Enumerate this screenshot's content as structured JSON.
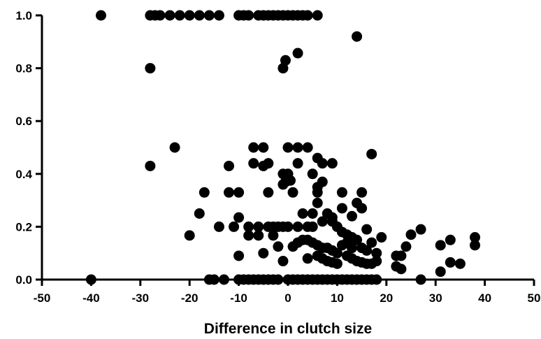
{
  "chart_data": {
    "type": "scatter",
    "title": "",
    "xlabel": "Difference in clutch size",
    "ylabel": "",
    "xlim": [
      -50,
      50
    ],
    "ylim": [
      0,
      1.0
    ],
    "xticks": [
      -50,
      -40,
      -30,
      -20,
      -10,
      0,
      10,
      20,
      30,
      40,
      50
    ],
    "yticks": [
      0.0,
      0.2,
      0.4,
      0.6,
      0.8,
      1.0
    ],
    "xtick_labels": [
      "-50",
      "-40",
      "-30",
      "-20",
      "-10",
      "0",
      "10",
      "20",
      "30",
      "40",
      "50"
    ],
    "ytick_labels": [
      "0.0",
      "0.2",
      "0.4",
      "0.6",
      "0.8",
      "1.0"
    ],
    "grid": false,
    "legend": "none",
    "marker_color": "#000000",
    "points": [
      [
        -38,
        1.0
      ],
      [
        -28,
        1.0
      ],
      [
        -27,
        1.0
      ],
      [
        -26,
        1.0
      ],
      [
        -24,
        1.0
      ],
      [
        -22,
        1.0
      ],
      [
        -20,
        1.0
      ],
      [
        -18,
        1.0
      ],
      [
        -16,
        1.0
      ],
      [
        -14,
        1.0
      ],
      [
        -10,
        1.0
      ],
      [
        -9,
        1.0
      ],
      [
        -8,
        1.0
      ],
      [
        -6,
        1.0
      ],
      [
        -5,
        1.0
      ],
      [
        -4,
        1.0
      ],
      [
        -3,
        1.0
      ],
      [
        -2,
        1.0
      ],
      [
        -1,
        1.0
      ],
      [
        0,
        1.0
      ],
      [
        1,
        1.0
      ],
      [
        2,
        1.0
      ],
      [
        3,
        1.0
      ],
      [
        4,
        1.0
      ],
      [
        6,
        1.0
      ],
      [
        -28,
        0.8
      ],
      [
        -1,
        0.8
      ],
      [
        -0.5,
        0.83
      ],
      [
        2,
        0.857
      ],
      [
        14,
        0.92
      ],
      [
        -23,
        0.5
      ],
      [
        -7,
        0.5
      ],
      [
        -5,
        0.5
      ],
      [
        0,
        0.5
      ],
      [
        2,
        0.5
      ],
      [
        4,
        0.5
      ],
      [
        -28,
        0.43
      ],
      [
        -12,
        0.43
      ],
      [
        -7,
        0.44
      ],
      [
        -5,
        0.43
      ],
      [
        -4,
        0.44
      ],
      [
        -1,
        0.4
      ],
      [
        0,
        0.4
      ],
      [
        2,
        0.44
      ],
      [
        5,
        0.4
      ],
      [
        6,
        0.46
      ],
      [
        7,
        0.44
      ],
      [
        9,
        0.44
      ],
      [
        17,
        0.475
      ],
      [
        -1,
        0.36
      ],
      [
        -0.5,
        0.37
      ],
      [
        0.5,
        0.375
      ],
      [
        6,
        0.35
      ],
      [
        7,
        0.37
      ],
      [
        -17,
        0.33
      ],
      [
        -12,
        0.33
      ],
      [
        -10,
        0.33
      ],
      [
        -4,
        0.33
      ],
      [
        1,
        0.33
      ],
      [
        6,
        0.33
      ],
      [
        11,
        0.33
      ],
      [
        15,
        0.33
      ],
      [
        -18,
        0.25
      ],
      [
        -10,
        0.235
      ],
      [
        3,
        0.25
      ],
      [
        5,
        0.25
      ],
      [
        6,
        0.29
      ],
      [
        8,
        0.25
      ],
      [
        9,
        0.235
      ],
      [
        11,
        0.27
      ],
      [
        13,
        0.24
      ],
      [
        14,
        0.29
      ],
      [
        15,
        0.27
      ],
      [
        -20,
        0.167
      ],
      [
        -14,
        0.2
      ],
      [
        -11,
        0.2
      ],
      [
        -8,
        0.2
      ],
      [
        -6,
        0.2
      ],
      [
        -4,
        0.2
      ],
      [
        -3,
        0.2
      ],
      [
        -2,
        0.2
      ],
      [
        -1,
        0.2
      ],
      [
        0,
        0.2
      ],
      [
        -8,
        0.167
      ],
      [
        -6,
        0.167
      ],
      [
        -3,
        0.167
      ],
      [
        2,
        0.2
      ],
      [
        4,
        0.2
      ],
      [
        5,
        0.2
      ],
      [
        7,
        0.22
      ],
      [
        9,
        0.22
      ],
      [
        10,
        0.2
      ],
      [
        11,
        0.18
      ],
      [
        12,
        0.17
      ],
      [
        13,
        0.16
      ],
      [
        14,
        0.15
      ],
      [
        16,
        0.19
      ],
      [
        17,
        0.14
      ],
      [
        19,
        0.16
      ],
      [
        27,
        0.19
      ],
      [
        25,
        0.17
      ],
      [
        38,
        0.16
      ],
      [
        1,
        0.125
      ],
      [
        2,
        0.14
      ],
      [
        3,
        0.15
      ],
      [
        4,
        0.15
      ],
      [
        5,
        0.14
      ],
      [
        6,
        0.13
      ],
      [
        7,
        0.12
      ],
      [
        8,
        0.12
      ],
      [
        9,
        0.11
      ],
      [
        10,
        0.1
      ],
      [
        11,
        0.13
      ],
      [
        12,
        0.14
      ],
      [
        13,
        0.12
      ],
      [
        15,
        0.12
      ],
      [
        16,
        0.11
      ],
      [
        18,
        0.1
      ],
      [
        22,
        0.09
      ],
      [
        23,
        0.09
      ],
      [
        24,
        0.125
      ],
      [
        31,
        0.13
      ],
      [
        33,
        0.15
      ],
      [
        38,
        0.13
      ],
      [
        -10,
        0.09
      ],
      [
        -5,
        0.1
      ],
      [
        -2,
        0.125
      ],
      [
        -1,
        0.07
      ],
      [
        4,
        0.08
      ],
      [
        6,
        0.09
      ],
      [
        7,
        0.08
      ],
      [
        8,
        0.07
      ],
      [
        9,
        0.065
      ],
      [
        10,
        0.06
      ],
      [
        12,
        0.09
      ],
      [
        13,
        0.08
      ],
      [
        14,
        0.07
      ],
      [
        15,
        0.065
      ],
      [
        16,
        0.06
      ],
      [
        17,
        0.06
      ],
      [
        18,
        0.07
      ],
      [
        22,
        0.05
      ],
      [
        23,
        0.04
      ],
      [
        31,
        0.03
      ],
      [
        33,
        0.065
      ],
      [
        35,
        0.06
      ],
      [
        -40,
        0.0
      ],
      [
        -16,
        0.0
      ],
      [
        -15,
        0.0
      ],
      [
        -13,
        0.0
      ],
      [
        -10,
        0.0
      ],
      [
        -9,
        0.0
      ],
      [
        -8,
        0.0
      ],
      [
        -7,
        0.0
      ],
      [
        -6,
        0.0
      ],
      [
        -5,
        0.0
      ],
      [
        -4,
        0.0
      ],
      [
        -3,
        0.0
      ],
      [
        -2,
        0.0
      ],
      [
        0,
        0.0
      ],
      [
        1,
        0.0
      ],
      [
        2,
        0.0
      ],
      [
        3,
        0.0
      ],
      [
        4,
        0.0
      ],
      [
        5,
        0.0
      ],
      [
        6,
        0.0
      ],
      [
        7,
        0.0
      ],
      [
        8,
        0.0
      ],
      [
        9,
        0.0
      ],
      [
        10,
        0.0
      ],
      [
        11,
        0.0
      ],
      [
        12,
        0.0
      ],
      [
        13,
        0.0
      ],
      [
        14,
        0.0
      ],
      [
        15,
        0.0
      ],
      [
        16,
        0.0
      ],
      [
        17,
        0.0
      ],
      [
        18,
        0.0
      ],
      [
        27,
        0.0
      ]
    ]
  }
}
